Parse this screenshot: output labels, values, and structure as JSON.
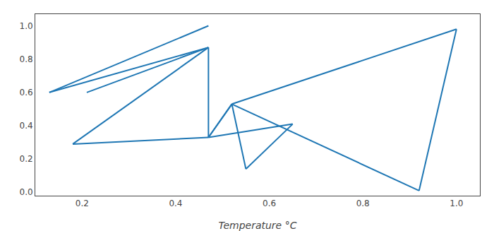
{
  "chart_data": {
    "type": "line",
    "xlabel": "Temperature °C",
    "color": "#1f77b4",
    "grid": false,
    "xlim": [
      0.1,
      1.05
    ],
    "ylim": [
      -0.02,
      1.07
    ],
    "xticks": [
      0.2,
      0.4,
      0.6,
      0.8,
      {
        "value": 1,
        "label": "1.0"
      }
    ],
    "yticks": [
      {
        "value": 0,
        "label": "0.0"
      },
      0.2,
      0.4,
      0.6,
      0.8,
      {
        "value": 1,
        "label": "1.0"
      }
    ],
    "series": [
      {
        "x": [
          0.13,
          0.47
        ],
        "values": [
          0.6,
          1.0
        ]
      },
      {
        "x": [
          0.13,
          0.47
        ],
        "values": [
          0.6,
          0.87
        ]
      },
      {
        "x": [
          0.21,
          0.47
        ],
        "values": [
          0.6,
          0.87
        ]
      },
      {
        "x": [
          0.18,
          0.47
        ],
        "values": [
          0.29,
          0.87
        ]
      },
      {
        "x": [
          0.18,
          0.47
        ],
        "values": [
          0.29,
          0.33
        ]
      },
      {
        "x": [
          0.47,
          0.47
        ],
        "values": [
          0.87,
          0.33
        ]
      },
      {
        "x": [
          0.47,
          0.52
        ],
        "values": [
          0.33,
          0.53
        ]
      },
      {
        "x": [
          0.52,
          0.47
        ],
        "values": [
          0.53,
          0.33
        ]
      },
      {
        "x": [
          0.47,
          0.65
        ],
        "values": [
          0.33,
          0.41
        ]
      },
      {
        "x": [
          0.65,
          0.55
        ],
        "values": [
          0.41,
          0.14
        ]
      },
      {
        "x": [
          0.55,
          0.52
        ],
        "values": [
          0.14,
          0.53
        ]
      },
      {
        "x": [
          0.52,
          1.0
        ],
        "values": [
          0.53,
          0.98
        ]
      },
      {
        "x": [
          0.52,
          0.92
        ],
        "values": [
          0.53,
          0.01
        ]
      },
      {
        "x": [
          0.92,
          1.0
        ],
        "values": [
          0.01,
          0.98
        ]
      }
    ]
  }
}
